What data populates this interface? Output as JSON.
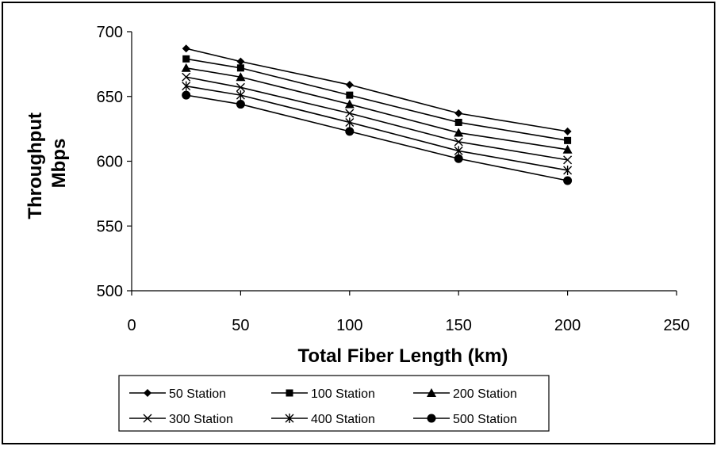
{
  "chart_data": {
    "type": "line",
    "xlabel": "Total Fiber Length (km)",
    "ylabel": [
      "Throughput",
      "Mbps"
    ],
    "x": [
      25,
      50,
      100,
      150,
      200
    ],
    "xlim": [
      0,
      250
    ],
    "ylim": [
      500,
      700
    ],
    "xticks": [
      0,
      50,
      100,
      150,
      200,
      250
    ],
    "yticks": [
      500,
      550,
      600,
      650,
      700
    ],
    "xtick_labels": [
      "0",
      "50",
      "100",
      "150",
      "200",
      "250"
    ],
    "ytick_labels": [
      "500",
      "550",
      "600",
      "650",
      "700"
    ],
    "grid": false,
    "legend_position": "bottom",
    "series": [
      {
        "name": "50 Station",
        "marker": "diamond",
        "values": [
          687,
          677,
          659,
          637,
          623
        ]
      },
      {
        "name": "100 Station",
        "marker": "square",
        "values": [
          679,
          672,
          651,
          630,
          616
        ]
      },
      {
        "name": "200 Station",
        "marker": "triangle",
        "values": [
          672,
          665,
          644,
          622,
          609
        ]
      },
      {
        "name": "300 Station",
        "marker": "x",
        "values": [
          665,
          657,
          637,
          615,
          601
        ]
      },
      {
        "name": "400 Station",
        "marker": "star",
        "values": [
          658,
          651,
          630,
          608,
          593
        ]
      },
      {
        "name": "500 Station",
        "marker": "circle",
        "values": [
          651,
          644,
          623,
          602,
          585
        ]
      }
    ]
  }
}
